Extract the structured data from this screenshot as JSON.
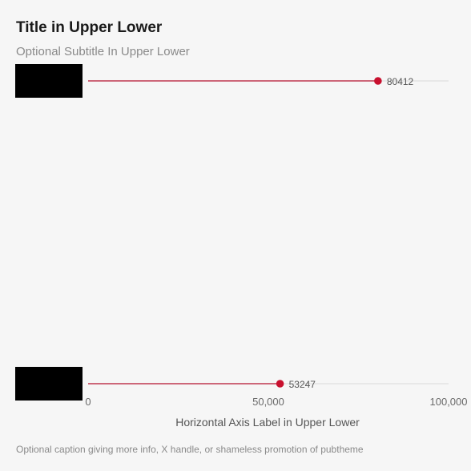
{
  "title": "Title in Upper Lower",
  "subtitle": "Optional Subtitle In Upper Lower",
  "caption": "Optional caption giving more info, X handle, or shameless promotion of pubtheme",
  "chart_data": {
    "type": "lollipop",
    "orientation": "horizontal",
    "categories": [
      "",
      ""
    ],
    "values": [
      80412,
      53247
    ],
    "data_labels": [
      "80412",
      "53247"
    ],
    "xlabel": "Horizontal Axis Label in Upper Lower",
    "ylabel": "",
    "xlim": [
      0,
      100000
    ],
    "x_ticks": [
      0,
      50000,
      100000
    ],
    "x_tick_labels": [
      "0",
      "50,000",
      "100,000"
    ],
    "category_labels_redacted": true,
    "grid": "horizontal baseline per row",
    "colors": {
      "stem": "#b5122f",
      "point": "#c8102e",
      "gridline": "#d9d9d9",
      "redaction": "#000000"
    }
  }
}
